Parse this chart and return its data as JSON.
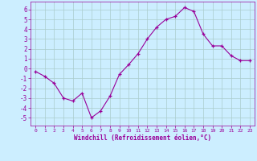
{
  "x": [
    0,
    1,
    2,
    3,
    4,
    5,
    6,
    7,
    8,
    9,
    10,
    11,
    12,
    13,
    14,
    15,
    16,
    17,
    18,
    19,
    20,
    21,
    22,
    23
  ],
  "y": [
    -0.3,
    -0.8,
    -1.5,
    -3.0,
    -3.3,
    -2.5,
    -5.0,
    -4.3,
    -2.8,
    -0.6,
    0.4,
    1.5,
    3.0,
    4.2,
    5.0,
    5.3,
    6.2,
    5.8,
    3.5,
    2.3,
    2.3,
    1.3,
    0.8,
    0.8
  ],
  "line_color": "#990099",
  "marker": "+",
  "marker_color": "#990099",
  "bg_color": "#cceeff",
  "grid_color": "#aacccc",
  "xlabel": "Windchill (Refroidissement éolien,°C)",
  "xlabel_color": "#990099",
  "tick_color": "#990099",
  "ylim": [
    -5.8,
    6.8
  ],
  "yticks": [
    -5,
    -4,
    -3,
    -2,
    -1,
    0,
    1,
    2,
    3,
    4,
    5,
    6
  ],
  "xticks": [
    0,
    1,
    2,
    3,
    4,
    5,
    6,
    7,
    8,
    9,
    10,
    11,
    12,
    13,
    14,
    15,
    16,
    17,
    18,
    19,
    20,
    21,
    22,
    23
  ],
  "xlim": [
    -0.5,
    23.5
  ]
}
